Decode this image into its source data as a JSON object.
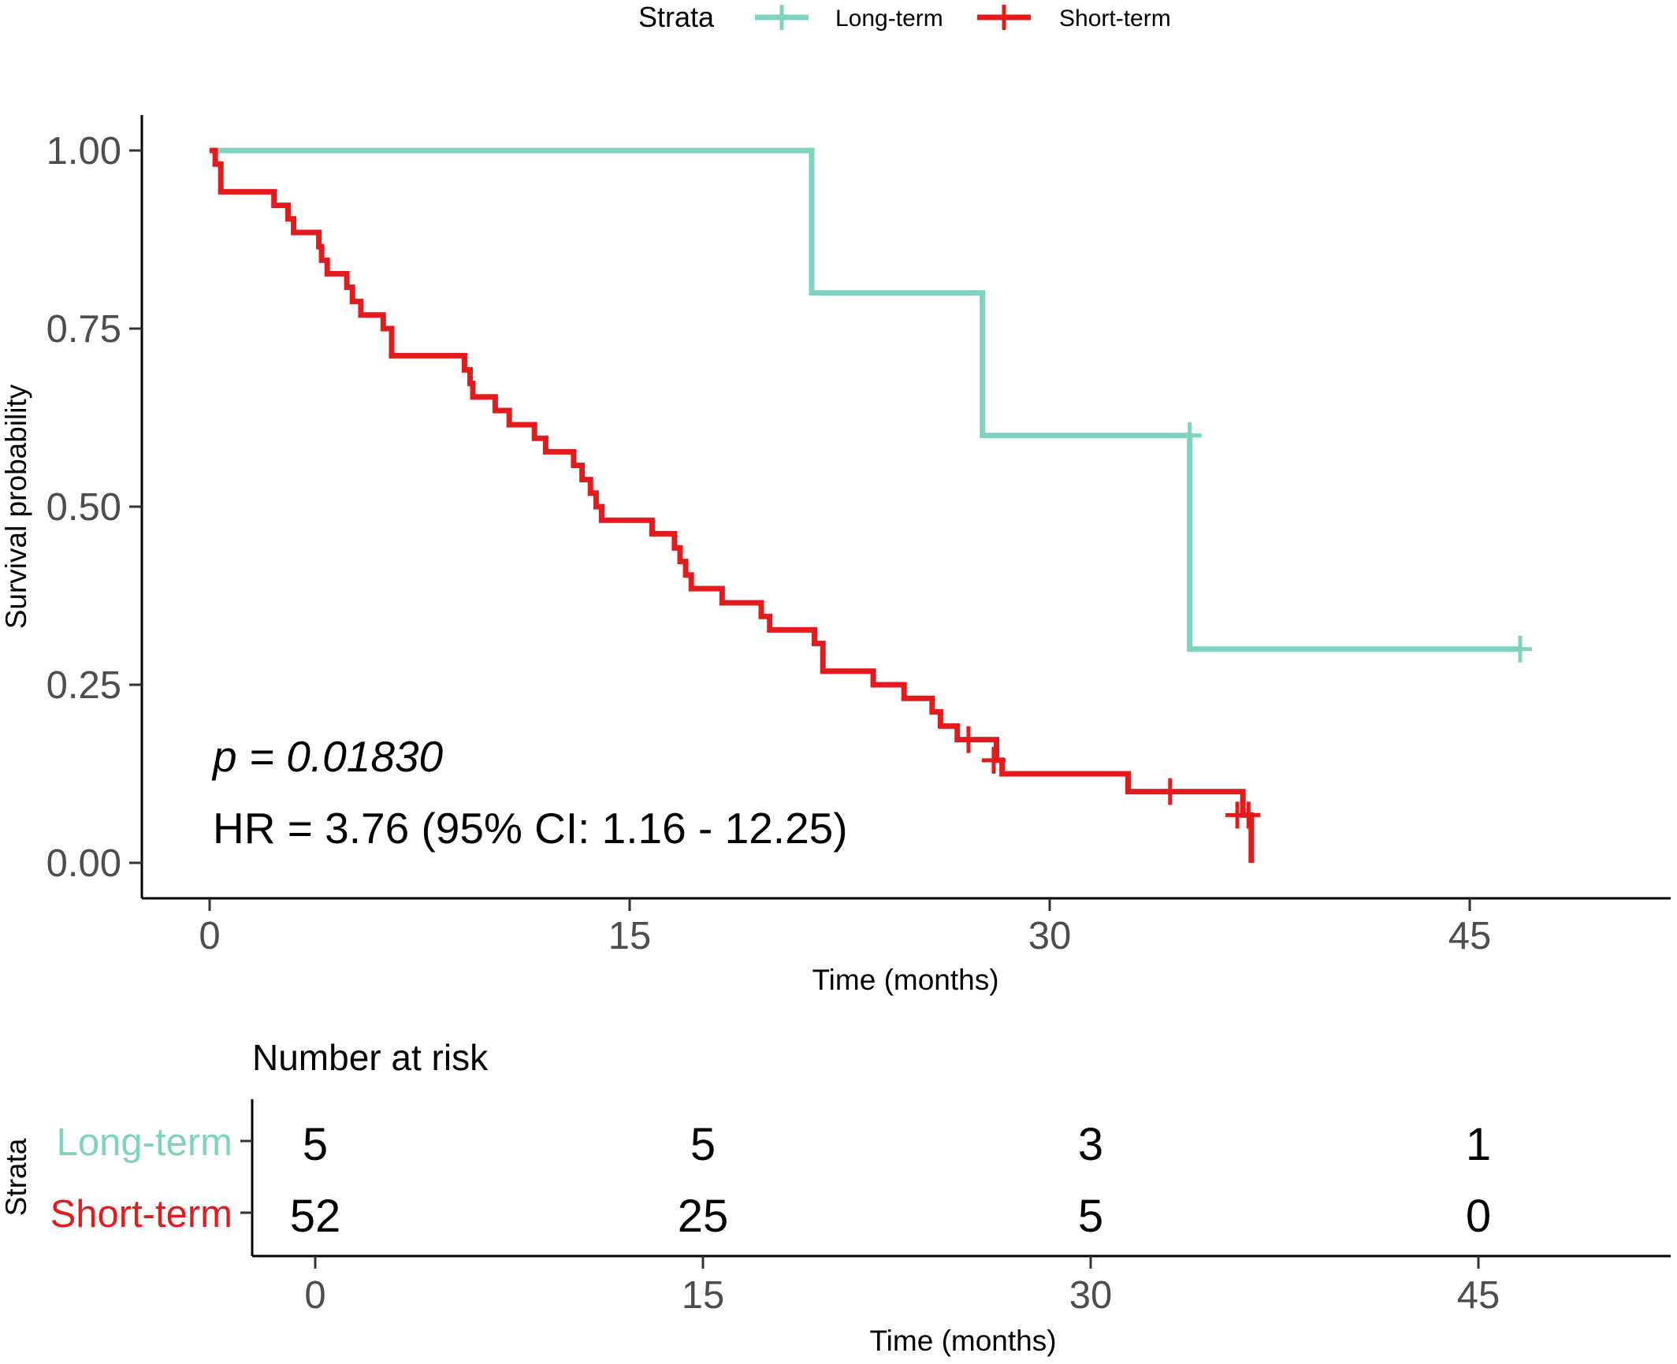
{
  "chart_data": [
    {
      "type": "line",
      "subtype": "kaplan-meier",
      "title": "",
      "xlabel": "Time (months)",
      "ylabel": "Survival probability",
      "xlim": [
        0,
        52
      ],
      "ylim": [
        0,
        1
      ],
      "xticks": [
        0,
        15,
        30,
        45
      ],
      "xtick_labels": [
        "0",
        "15",
        "30",
        "45"
      ],
      "yticks": [
        0,
        0.25,
        0.5,
        0.75,
        1.0
      ],
      "ytick_labels": [
        "0.00",
        "0.25",
        "0.50",
        "0.75",
        "1.00"
      ],
      "grid": false,
      "legend": {
        "title": "Strata",
        "position": "top",
        "entries": [
          "Long-term",
          "Short-term"
        ]
      },
      "annotations": {
        "p_value": "p = 0.01830",
        "hr": "HR = 3.76 (95% CI: 1.16 - 12.25)"
      },
      "series": [
        {
          "name": "Long-term",
          "color": "#7dd3c0",
          "steps": [
            [
              0,
              1.0
            ],
            [
              21.5,
              0.8
            ],
            [
              27.6,
              0.6
            ],
            [
              35.0,
              0.3
            ]
          ],
          "end_time": 46.8,
          "censored": [
            [
              35.0,
              0.6
            ],
            [
              46.8,
              0.3
            ]
          ]
        },
        {
          "name": "Short-term",
          "color": "#e41a1c",
          "steps": [
            [
              0,
              1.0
            ],
            [
              0.2,
              0.981
            ],
            [
              0.4,
              0.942
            ],
            [
              2.3,
              0.923
            ],
            [
              2.8,
              0.904
            ],
            [
              3.0,
              0.885
            ],
            [
              3.9,
              0.865
            ],
            [
              4.0,
              0.846
            ],
            [
              4.2,
              0.827
            ],
            [
              4.9,
              0.808
            ],
            [
              5.1,
              0.788
            ],
            [
              5.4,
              0.769
            ],
            [
              6.2,
              0.75
            ],
            [
              6.5,
              0.712
            ],
            [
              9.1,
              0.692
            ],
            [
              9.3,
              0.673
            ],
            [
              9.4,
              0.654
            ],
            [
              10.2,
              0.635
            ],
            [
              10.7,
              0.615
            ],
            [
              11.6,
              0.596
            ],
            [
              12.0,
              0.577
            ],
            [
              13.0,
              0.558
            ],
            [
              13.3,
              0.538
            ],
            [
              13.6,
              0.519
            ],
            [
              13.8,
              0.5
            ],
            [
              14.0,
              0.481
            ],
            [
              15.8,
              0.462
            ],
            [
              16.6,
              0.442
            ],
            [
              16.8,
              0.423
            ],
            [
              17.0,
              0.404
            ],
            [
              17.2,
              0.385
            ],
            [
              18.3,
              0.365
            ],
            [
              19.7,
              0.346
            ],
            [
              20.0,
              0.327
            ],
            [
              21.6,
              0.308
            ],
            [
              21.9,
              0.288
            ],
            [
              21.9,
              0.269
            ],
            [
              23.7,
              0.25
            ],
            [
              24.8,
              0.231
            ],
            [
              25.8,
              0.212
            ],
            [
              26.1,
              0.192
            ],
            [
              26.7,
              0.173
            ],
            [
              28.1,
              0.144
            ],
            [
              28.3,
              0.125
            ],
            [
              32.8,
              0.1
            ],
            [
              36.9,
              0.067
            ],
            [
              37.2,
              0.0
            ]
          ],
          "end_time": 37.2,
          "censored": [
            [
              27.1,
              0.173
            ],
            [
              28.0,
              0.144
            ],
            [
              34.3,
              0.1
            ],
            [
              36.7,
              0.067
            ],
            [
              37.1,
              0.067
            ]
          ]
        }
      ]
    },
    {
      "type": "table",
      "title": "Number at risk",
      "row_axis_title": "Strata",
      "xlabel": "Time (months)",
      "xticks": [
        0,
        15,
        30,
        45
      ],
      "xtick_labels": [
        "0",
        "15",
        "30",
        "45"
      ],
      "rows": [
        {
          "label": "Long-term",
          "color": "#7dd3c0",
          "values": [
            "5",
            "5",
            "3",
            "1"
          ]
        },
        {
          "label": "Short-term",
          "color": "#e41a1c",
          "values": [
            "52",
            "25",
            "5",
            "0"
          ]
        }
      ]
    }
  ]
}
